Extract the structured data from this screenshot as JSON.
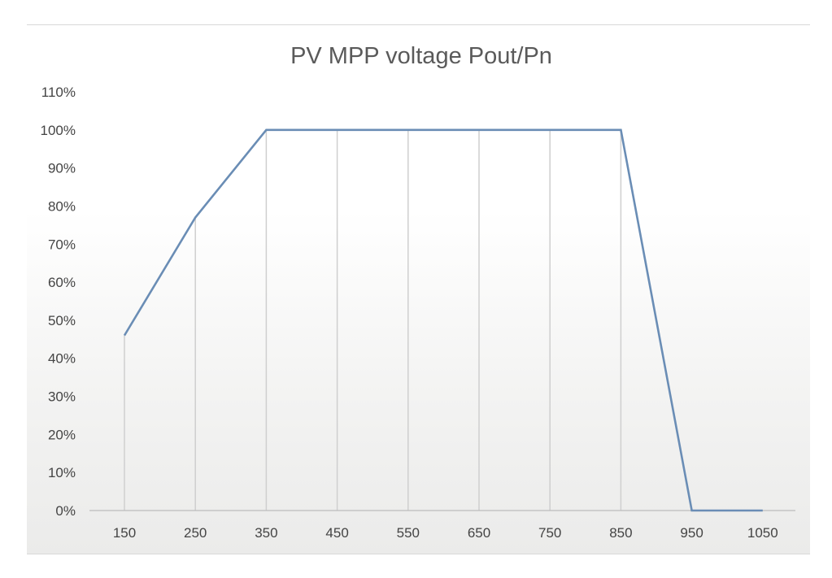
{
  "chart_data": {
    "type": "line",
    "title": "PV MPP voltage Pout/Pn",
    "xlabel": "",
    "ylabel": "",
    "categories": [
      "150",
      "250",
      "350",
      "450",
      "550",
      "650",
      "750",
      "850",
      "950",
      "1050"
    ],
    "y_tick_labels": [
      "0%",
      "10%",
      "20%",
      "30%",
      "40%",
      "50%",
      "60%",
      "70%",
      "80%",
      "90%",
      "100%",
      "110%"
    ],
    "ylim": [
      0,
      110
    ],
    "grid": "vertical drop lines at each category",
    "legend": "none",
    "series": [
      {
        "values": [
          46,
          77,
          100,
          100,
          100,
          100,
          100,
          100,
          0,
          0
        ],
        "color": "#6a8db5"
      }
    ],
    "colors": {
      "line": "#6a8db5",
      "gridline": "#cfcfcf",
      "axis": "#bdbdbd",
      "text": "#444444",
      "title": "#5a5a5a"
    }
  }
}
